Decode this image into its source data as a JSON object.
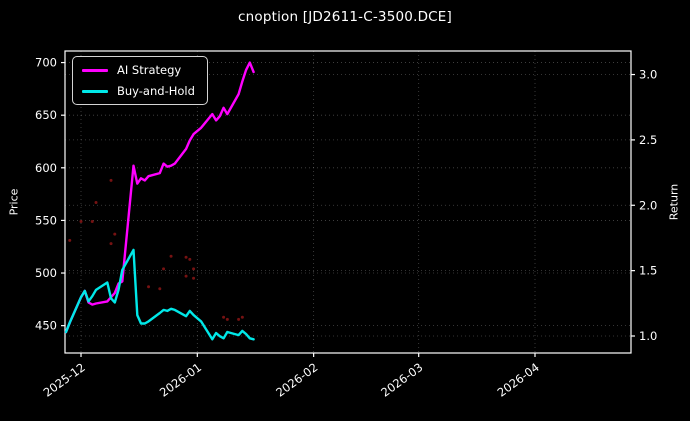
{
  "title": "cnoption [JD2611-C-3500.DCE]",
  "colors": {
    "background": "#000000",
    "text": "#ffffff",
    "spine": "#ffffff",
    "grid": "#ffffff",
    "grid_opacity": 0.28,
    "ai_strategy": "#ff00ff",
    "buy_and_hold": "#00e8e8",
    "trade_dots": "#8b1515"
  },
  "legend": {
    "items": [
      {
        "label": "AI Strategy",
        "color": "#ff00ff"
      },
      {
        "label": "Buy-and-Hold",
        "color": "#00e8e8"
      }
    ]
  },
  "axes": {
    "left_label": "Price",
    "right_label": "Return",
    "left_ticks": [
      {
        "value": 450,
        "label": "450"
      },
      {
        "value": 500,
        "label": "500"
      },
      {
        "value": 550,
        "label": "550"
      },
      {
        "value": 600,
        "label": "600"
      },
      {
        "value": 650,
        "label": "650"
      },
      {
        "value": 700,
        "label": "700"
      }
    ],
    "right_ticks": [
      {
        "value": 1.0,
        "label": "1.0"
      },
      {
        "value": 1.5,
        "label": "1.5"
      },
      {
        "value": 2.0,
        "label": "2.0"
      },
      {
        "value": 2.5,
        "label": "2.5"
      },
      {
        "value": 3.0,
        "label": "3.0"
      }
    ],
    "x_ticks": [
      {
        "date": "2025-12-01",
        "label": "2025-12"
      },
      {
        "date": "2026-01-01",
        "label": "2026-01"
      },
      {
        "date": "2026-02-01",
        "label": "2026-02"
      },
      {
        "date": "2026-03-01",
        "label": "2026-03"
      },
      {
        "date": "2026-04-01",
        "label": "2026-04"
      }
    ]
  },
  "chart_data": {
    "type": "line",
    "title": "cnoption [JD2611-C-3500.DCE]",
    "xlabel": "",
    "ylabel_left": "Price",
    "ylabel_right": "Return",
    "grid": "dotted",
    "legend_position": "upper left",
    "price_ylim": [
      424,
      711
    ],
    "return_ylim": [
      0.87,
      3.18
    ],
    "x_axis": {
      "start_date": "2025-11-27",
      "end_date": "2026-04-26"
    },
    "x": [
      "2025-11-27",
      "2025-11-28",
      "2025-12-01",
      "2025-12-02",
      "2025-12-03",
      "2025-12-04",
      "2025-12-05",
      "2025-12-08",
      "2025-12-09",
      "2025-12-10",
      "2025-12-11",
      "2025-12-12",
      "2025-12-15",
      "2025-12-16",
      "2025-12-17",
      "2025-12-18",
      "2025-12-19",
      "2025-12-22",
      "2025-12-23",
      "2025-12-24",
      "2025-12-25",
      "2025-12-26",
      "2025-12-29",
      "2025-12-30",
      "2025-12-31",
      "2026-01-02",
      "2026-01-05",
      "2026-01-06",
      "2026-01-07",
      "2026-01-08",
      "2026-01-09",
      "2026-01-12",
      "2026-01-13",
      "2026-01-14",
      "2026-01-15",
      "2026-01-16"
    ],
    "series": [
      {
        "name": "AI Strategy",
        "axis": "price",
        "color": "#ff00ff",
        "values": [
          444,
          453,
          477,
          483,
          472,
          470,
          471,
          473,
          477,
          481,
          490,
          492,
          602,
          585,
          590,
          588,
          592,
          595,
          604,
          601,
          602,
          604,
          618,
          626,
          632,
          638,
          651,
          645,
          649,
          657,
          651,
          670,
          682,
          693,
          700,
          691
        ]
      },
      {
        "name": "Buy-and-Hold",
        "axis": "price",
        "color": "#00e8e8",
        "values": [
          444,
          453,
          477,
          483,
          473,
          478,
          484,
          491,
          476,
          472,
          484,
          503,
          522,
          460,
          452,
          452,
          454,
          462,
          465,
          464,
          466,
          465,
          459,
          464,
          460,
          454,
          437,
          443,
          440,
          438,
          444,
          441,
          445,
          442,
          438,
          437
        ]
      }
    ],
    "scatter": {
      "name": "trade-dots",
      "color": "#8b1515",
      "points": [
        {
          "date": "2025-11-28",
          "price": 531
        },
        {
          "date": "2025-12-01",
          "price": 549
        },
        {
          "date": "2025-12-04",
          "price": 549
        },
        {
          "date": "2025-12-05",
          "price": 567
        },
        {
          "date": "2025-12-09",
          "price": 528
        },
        {
          "date": "2025-12-09",
          "price": 588
        },
        {
          "date": "2025-12-10",
          "price": 537
        },
        {
          "date": "2025-12-19",
          "price": 487
        },
        {
          "date": "2025-12-22",
          "price": 485
        },
        {
          "date": "2025-12-23",
          "price": 504
        },
        {
          "date": "2025-12-25",
          "price": 516
        },
        {
          "date": "2025-12-29",
          "price": 497
        },
        {
          "date": "2025-12-29",
          "price": 515
        },
        {
          "date": "2025-12-30",
          "price": 513
        },
        {
          "date": "2025-12-31",
          "price": 495
        },
        {
          "date": "2025-12-31",
          "price": 504
        },
        {
          "date": "2026-01-08",
          "price": 458
        },
        {
          "date": "2026-01-09",
          "price": 456
        },
        {
          "date": "2026-01-12",
          "price": 456
        },
        {
          "date": "2026-01-13",
          "price": 458
        }
      ]
    }
  }
}
